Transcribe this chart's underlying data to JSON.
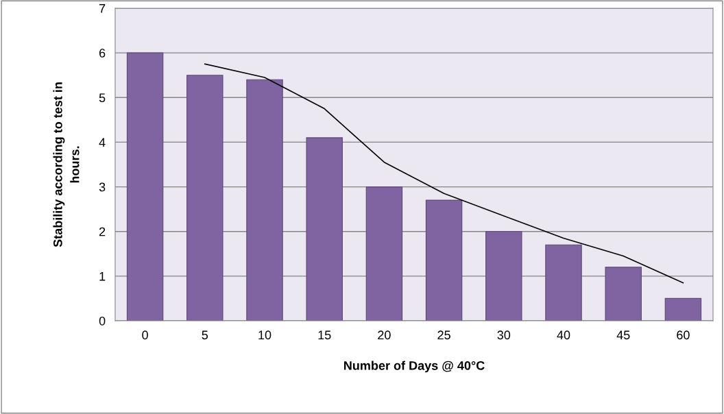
{
  "chart_data": {
    "type": "bar",
    "xlabel": "Number of Days @ 40°C",
    "ylabel": "Stability according to test in\nhours.",
    "categories": [
      "0",
      "5",
      "10",
      "15",
      "20",
      "25",
      "30",
      "40",
      "45",
      "60"
    ],
    "series": [
      {
        "color": "#8064a2",
        "values": [
          6,
          5.5,
          5.4,
          4.1,
          3,
          2.7,
          2,
          1.7,
          1.2,
          0.5
        ]
      },
      {
        "type": "line",
        "color": "#000000",
        "values": [
          null,
          5.75,
          5.45,
          4.75,
          3.55,
          2.85,
          2.35,
          1.85,
          1.45,
          0.85
        ]
      }
    ],
    "ylim": [
      0,
      7
    ],
    "yticks": [
      0,
      1,
      2,
      3,
      4,
      5,
      6,
      7
    ],
    "grid": "y",
    "legend": false
  }
}
